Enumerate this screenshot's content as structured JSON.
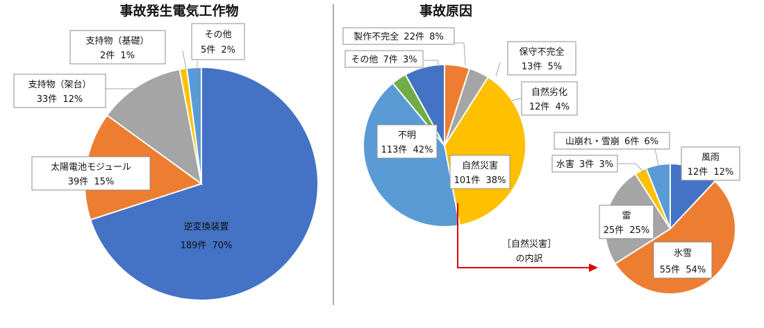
{
  "chart_data": [
    {
      "type": "pie",
      "title": "事故発生電気工作物",
      "slices": [
        {
          "name": "逆変換装置",
          "count": "189件",
          "percent": "70%",
          "value": 70,
          "color": "#4472c4"
        },
        {
          "name": "太陽電池モジュール",
          "count": "39件",
          "percent": "15%",
          "value": 15,
          "color": "#ed7d31"
        },
        {
          "name": "支持物（架台）",
          "count": "33件",
          "percent": "12%",
          "value": 12,
          "color": "#a5a5a5"
        },
        {
          "name": "支持物（基礎）",
          "count": "2件",
          "percent": "1%",
          "value": 1,
          "color": "#ffc000"
        },
        {
          "name": "その他",
          "count": "5件",
          "percent": "2%",
          "value": 2,
          "color": "#5b9bd5"
        }
      ]
    },
    {
      "type": "pie",
      "title": "事故原因",
      "slices": [
        {
          "name": "保守不完全",
          "count": "13件",
          "percent": "5%",
          "value": 5,
          "color": "#ed7d31"
        },
        {
          "name": "自然劣化",
          "count": "12件",
          "percent": "4%",
          "value": 4,
          "color": "#a5a5a5"
        },
        {
          "name": "自然災害",
          "count": "101件",
          "percent": "38%",
          "value": 38,
          "color": "#ffc000"
        },
        {
          "name": "不明",
          "count": "113件",
          "percent": "42%",
          "value": 42,
          "color": "#5b9bd5"
        },
        {
          "name": "その他",
          "count": "7件",
          "percent": "3%",
          "value": 3,
          "color": "#70ad47"
        },
        {
          "name": "製作不完全",
          "count": "22件",
          "percent": "8%",
          "value": 8,
          "color": "#4472c4"
        }
      ]
    },
    {
      "type": "pie",
      "title": "",
      "slices": [
        {
          "name": "風雨",
          "count": "12件",
          "percent": "12%",
          "value": 12,
          "color": "#4472c4"
        },
        {
          "name": "氷雪",
          "count": "55件",
          "percent": "54%",
          "value": 54,
          "color": "#ed7d31"
        },
        {
          "name": "雷",
          "count": "25件",
          "percent": "25%",
          "value": 25,
          "color": "#a5a5a5"
        },
        {
          "name": "水害",
          "count": "3件",
          "percent": "3%",
          "value": 3,
          "color": "#ffc000"
        },
        {
          "name": "山崩れ・雪崩",
          "count": "6件",
          "percent": "6%",
          "value": 6,
          "color": "#5b9bd5"
        }
      ]
    }
  ],
  "annotation": {
    "line1": "［自然災害］",
    "line2": "の内訳",
    "arrow_color": "#e00000"
  }
}
